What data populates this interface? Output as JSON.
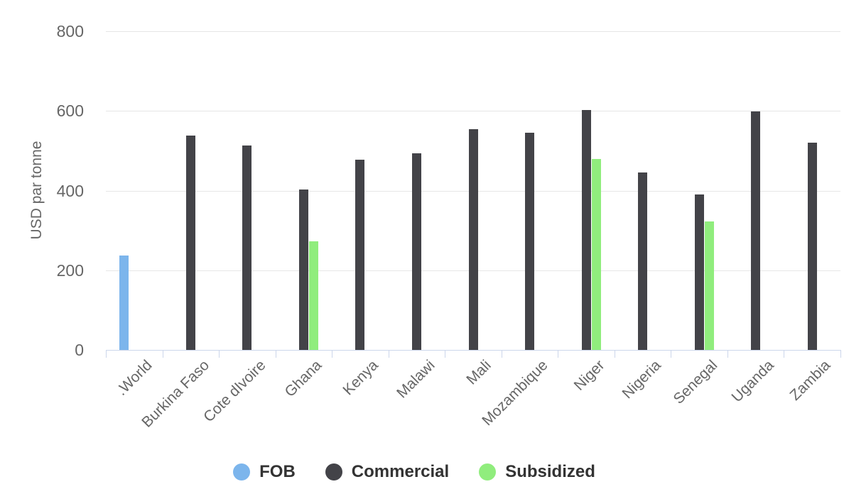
{
  "chart_data": {
    "type": "bar",
    "title": "",
    "xlabel": "",
    "ylabel": "USD par tonne",
    "ylim": [
      0,
      800
    ],
    "yticks": [
      0,
      200,
      400,
      600,
      800
    ],
    "grid": true,
    "legend_position": "bottom",
    "axis_line_color": "#ccd6eb",
    "grid_color": "#e6e6e6",
    "tick_label_color": "#666666",
    "legend_text_color": "#333333",
    "categories": [
      ".World",
      "Burkina Faso",
      "Cote dIvoire",
      "Ghana",
      "Kenya",
      "Malawi",
      "Mali",
      "Mozambique",
      "Niger",
      "Nigeria",
      "Senegal",
      "Uganda",
      "Zambia"
    ],
    "series": [
      {
        "name": "FOB",
        "color": "#7cb5ec",
        "values": [
          237,
          null,
          null,
          null,
          null,
          null,
          null,
          null,
          null,
          null,
          null,
          null,
          null
        ]
      },
      {
        "name": "Commercial",
        "color": "#434348",
        "values": [
          null,
          538,
          513,
          403,
          477,
          494,
          555,
          545,
          603,
          445,
          391,
          599,
          520
        ]
      },
      {
        "name": "Subsidized",
        "color": "#90ed7d",
        "values": [
          null,
          null,
          null,
          273,
          null,
          null,
          null,
          null,
          480,
          null,
          323,
          null,
          null
        ]
      }
    ]
  }
}
